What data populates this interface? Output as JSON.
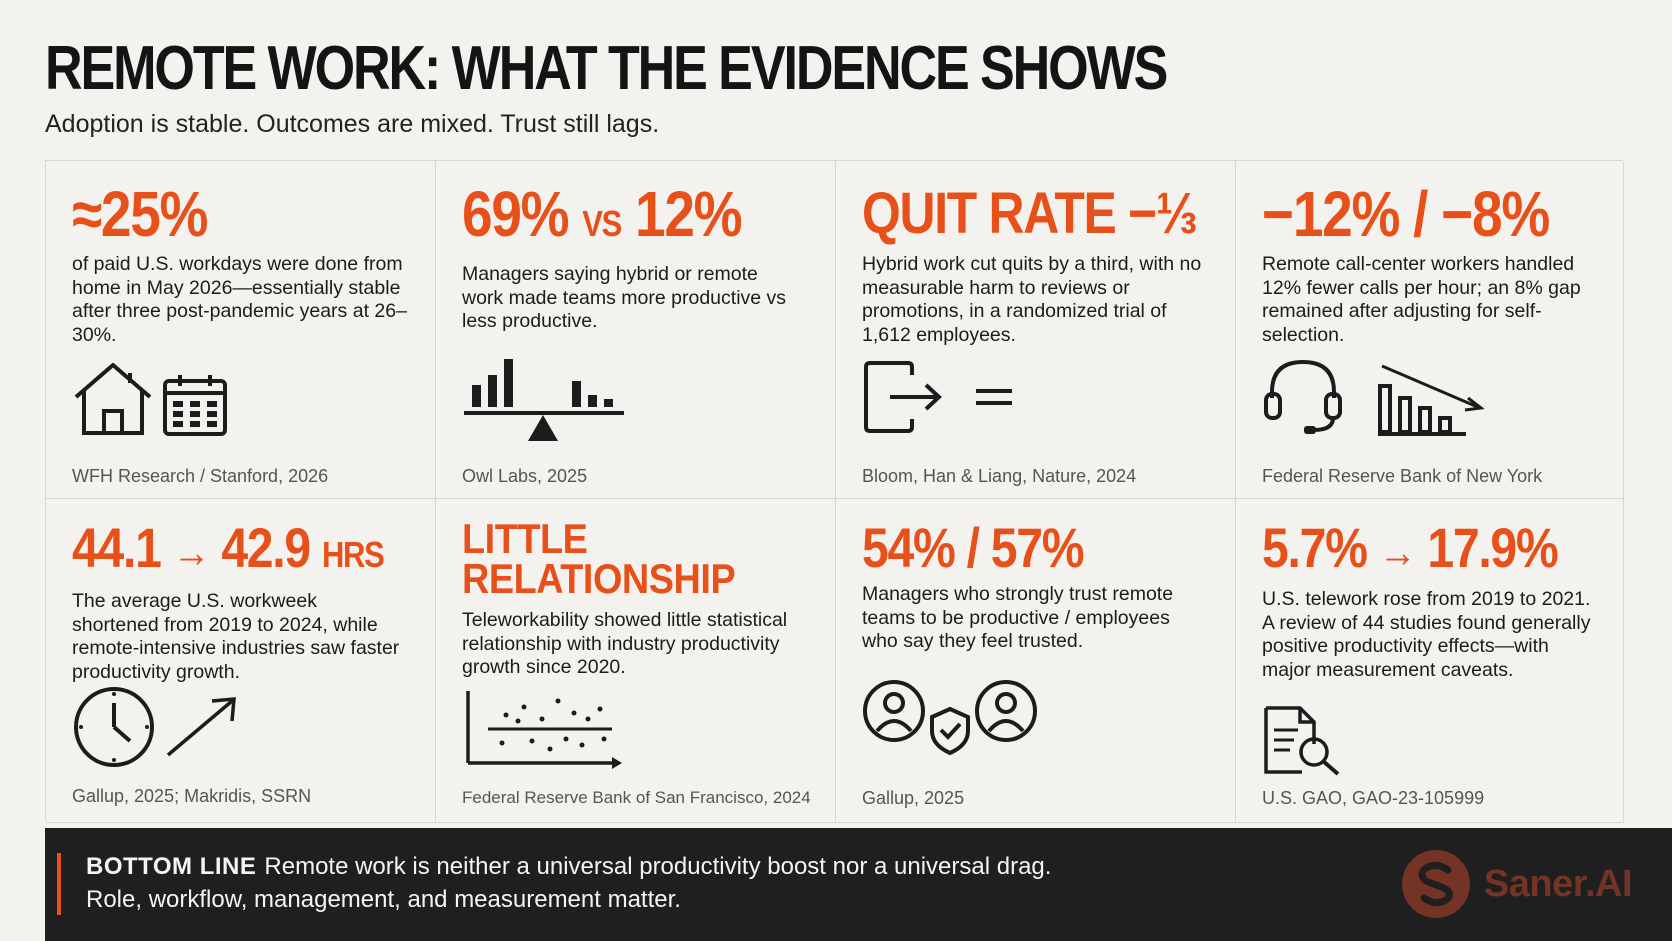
{
  "header": {
    "title": "REMOTE WORK: WHAT THE EVIDENCE SHOWS",
    "subtitle": "Adoption is stable. Outcomes are mixed. Trust still lags."
  },
  "cards": [
    {
      "stat": "≈25%",
      "desc": "of paid U.S. workdays were done from home in May 2026—essentially stable after three post-pandemic years at 26–30%.",
      "source": "WFH Research / Stanford, 2026",
      "icons": [
        "house-icon",
        "calendar-icon"
      ]
    },
    {
      "stat_a": "69%",
      "stat_vs": "VS",
      "stat_b": "12%",
      "desc": "Managers saying hybrid or remote work made teams more productive vs less productive.",
      "source": "Owl Labs, 2025",
      "icons": [
        "balance-bars-icon"
      ]
    },
    {
      "stat": "QUIT RATE −⅓",
      "desc": "Hybrid work cut quits by a third, with no measurable harm to reviews or promotions, in a randomized trial of 1,612 employees.",
      "source": "Bloom, Han & Liang, Nature, 2024",
      "icons": [
        "exit-arrow-icon",
        "equals-icon"
      ]
    },
    {
      "stat": "−12% / −8%",
      "desc": "Remote call-center workers handled 12% fewer calls per hour; an 8% gap remained after adjusting for self-selection.",
      "source": "Federal Reserve Bank of New York",
      "icons": [
        "headset-icon",
        "declining-bars-icon"
      ]
    },
    {
      "stat_a": "44.1",
      "stat_arrow": "→",
      "stat_b": "42.9",
      "stat_unit": "HRS",
      "desc": "The average U.S. workweek shortened from 2019 to 2024, while remote-intensive industries saw faster productivity growth.",
      "source": "Gallup, 2025; Makridis, SSRN",
      "icons": [
        "clock-icon",
        "trend-arrow-icon"
      ]
    },
    {
      "stat_line1": "LITTLE",
      "stat_line2": "RELATIONSHIP",
      "desc": "Teleworkability showed little statistical relationship with industry productivity growth since 2020.",
      "source": "Federal Reserve Bank of San Francisco, 2024",
      "icons": [
        "scatter-plot-icon"
      ]
    },
    {
      "stat": "54% / 57%",
      "desc": "Managers who strongly trust remote teams to be productive / employees who say they feel trusted.",
      "source": "Gallup, 2025",
      "icons": [
        "people-trust-icon"
      ]
    },
    {
      "stat_a": "5.7%",
      "stat_arrow": "→",
      "stat_b": "17.9%",
      "desc": "U.S. telework rose from 2019 to 2021. A review of 44 studies found generally positive productivity effects—with major measurement caveats.",
      "source": "U.S. GAO, GAO-23-105999",
      "icons": [
        "document-search-icon"
      ]
    }
  ],
  "footer": {
    "label": "BOTTOM LINE",
    "line1": "Remote work is neither a universal productivity boost nor a universal drag.",
    "line2": "Role, workflow, management, and measurement matter."
  },
  "brand": {
    "name": "Saner.AI"
  },
  "colors": {
    "accent": "#e8501a",
    "background": "#f4f2ee",
    "footer": "#1f1f1f"
  }
}
